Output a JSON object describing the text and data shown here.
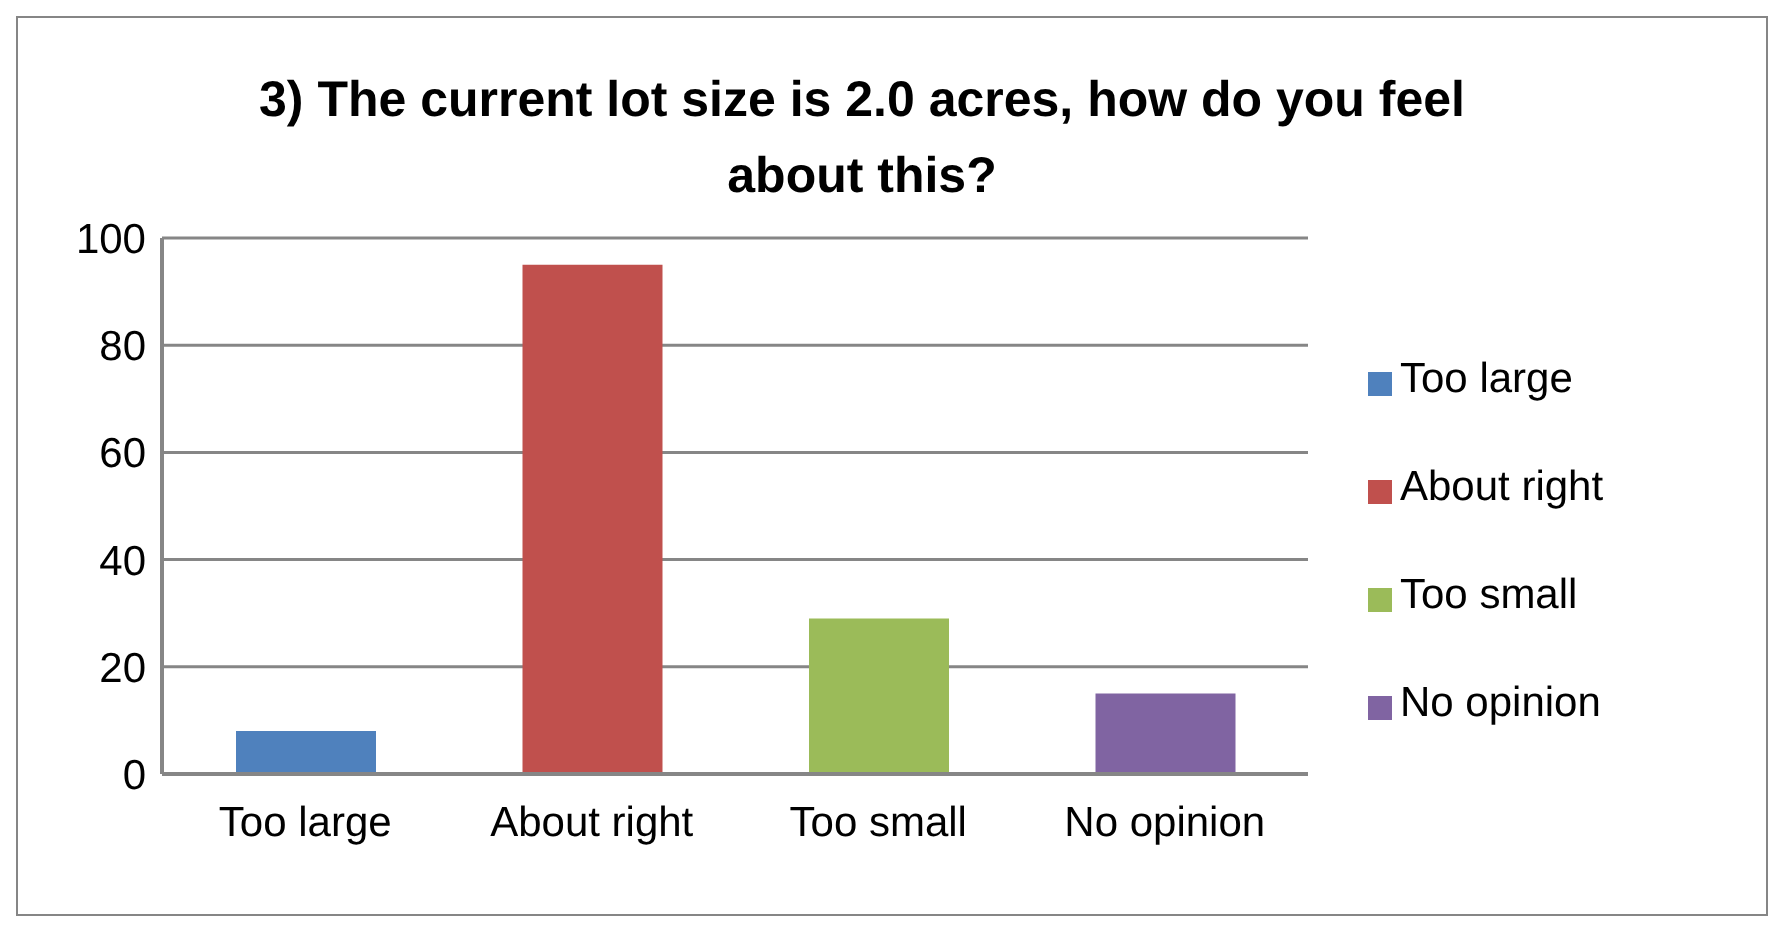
{
  "chart_data": {
    "type": "bar",
    "title": "3) The current lot size is 2.0 acres, how do you feel about this?",
    "categories": [
      "Too large",
      "About right",
      "Too small",
      "No opinion"
    ],
    "series": [
      {
        "name": "Too large",
        "color": "#4f81bd",
        "values": [
          8,
          null,
          null,
          null
        ]
      },
      {
        "name": "About right",
        "color": "#c0504d",
        "values": [
          null,
          95,
          null,
          null
        ]
      },
      {
        "name": "Too small",
        "color": "#9bbb59",
        "values": [
          null,
          null,
          29,
          null
        ]
      },
      {
        "name": "No opinion",
        "color": "#8064a2",
        "values": [
          null,
          null,
          null,
          15
        ]
      }
    ],
    "stacked": true,
    "ylim": [
      0,
      100
    ],
    "yticks": [
      0,
      20,
      40,
      60,
      80,
      100
    ],
    "grid": "y",
    "legend": "right"
  }
}
